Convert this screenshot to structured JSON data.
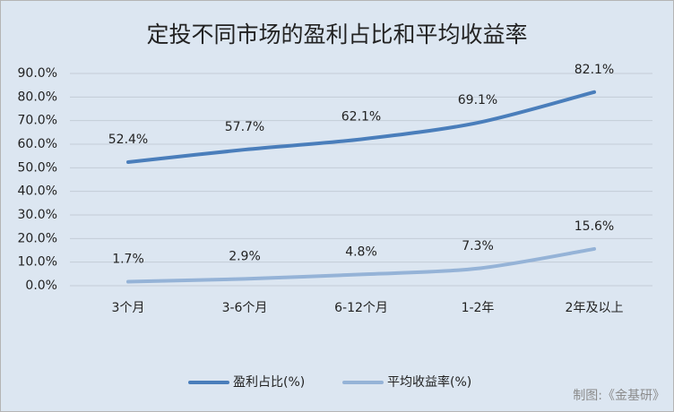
{
  "chart_data": {
    "type": "line",
    "title": "定投不同市场的盈利占比和平均收益率",
    "categories": [
      "3个月",
      "3-6个月",
      "6-12个月",
      "1-2年",
      "2年及以上"
    ],
    "series": [
      {
        "name": "盈利占比(%)",
        "color": "#4a7ebb",
        "values": [
          52.4,
          57.7,
          62.1,
          69.1,
          82.1
        ],
        "value_labels": [
          "52.4%",
          "57.7%",
          "62.1%",
          "69.1%",
          "82.1%"
        ]
      },
      {
        "name": "平均收益率(%)",
        "color": "#95b3d7",
        "values": [
          1.7,
          2.9,
          4.8,
          7.3,
          15.6
        ],
        "value_labels": [
          "1.7%",
          "2.9%",
          "4.8%",
          "7.3%",
          "15.6%"
        ]
      }
    ],
    "ylim": [
      0,
      90
    ],
    "yticks": [
      {
        "value": 0,
        "label": "0.0%"
      },
      {
        "value": 10,
        "label": "10.0%"
      },
      {
        "value": 20,
        "label": "20.0%"
      },
      {
        "value": 30,
        "label": "30.0%"
      },
      {
        "value": 40,
        "label": "40.0%"
      },
      {
        "value": 50,
        "label": "50.0%"
      },
      {
        "value": 60,
        "label": "60.0%"
      },
      {
        "value": 70,
        "label": "70.0%"
      },
      {
        "value": 80,
        "label": "80.0%"
      },
      {
        "value": 90,
        "label": "90.0%"
      }
    ],
    "grid": true,
    "legend": "bottom",
    "source": "制图:《金基研》"
  }
}
